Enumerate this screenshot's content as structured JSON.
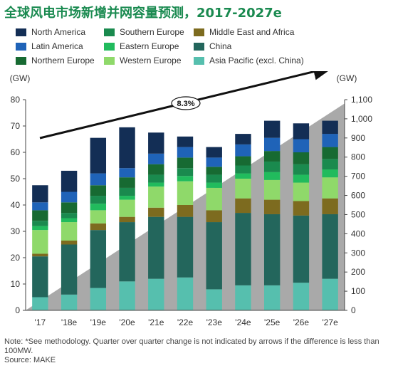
{
  "title": "全球风电市场新增并网容量预测，2017-2027e",
  "legend": [
    {
      "name": "North America",
      "color": "#132e55"
    },
    {
      "name": "Southern Europe",
      "color": "#1a8a4e"
    },
    {
      "name": "Middle East and Africa",
      "color": "#7d6b1f"
    },
    {
      "name": "Latin America",
      "color": "#1f63b8"
    },
    {
      "name": "Eastern Europe",
      "color": "#21bb5d"
    },
    {
      "name": "China",
      "color": "#23665c"
    },
    {
      "name": "Northern Europe",
      "color": "#176a32"
    },
    {
      "name": "Western Europe",
      "color": "#8fd96a"
    },
    {
      "name": "Asia Pacific (excl. China)",
      "color": "#56bfae"
    }
  ],
  "chart_data": {
    "type": "bar",
    "stacked": true,
    "categories": [
      "'17",
      "'18e",
      "'19e",
      "'20e",
      "'21e",
      "'22e",
      "'23e",
      "'24e",
      "'25e",
      "'26e",
      "'27e"
    ],
    "series": [
      {
        "name": "Asia Pacific (excl. China)",
        "values": [
          5,
          6,
          8.5,
          11,
          12,
          12.5,
          8,
          9.5,
          9.5,
          10.5,
          12
        ]
      },
      {
        "name": "China",
        "values": [
          15.5,
          19,
          22,
          22.5,
          23.5,
          23,
          25.5,
          27.5,
          27,
          25.5,
          24.5
        ]
      },
      {
        "name": "Middle East and Africa",
        "values": [
          1,
          1.5,
          2.5,
          2,
          3.5,
          4.5,
          4.5,
          5.5,
          5.5,
          5.5,
          6
        ]
      },
      {
        "name": "Western Europe",
        "values": [
          9,
          7,
          5,
          6.5,
          8,
          9,
          8.5,
          7.5,
          7.5,
          7,
          8
        ]
      },
      {
        "name": "Eastern Europe",
        "values": [
          1.5,
          1.5,
          2.5,
          1.5,
          1.5,
          2,
          2,
          2,
          3,
          3,
          3
        ]
      },
      {
        "name": "Southern Europe",
        "values": [
          2,
          2,
          3,
          3,
          3,
          3,
          3,
          3,
          4,
          4,
          4
        ]
      },
      {
        "name": "Northern Europe",
        "values": [
          4,
          4,
          4,
          4,
          4,
          4,
          3,
          3.5,
          4,
          4.5,
          4.5
        ]
      },
      {
        "name": "Latin America",
        "values": [
          3,
          4,
          4.5,
          3.5,
          4,
          4,
          3.5,
          4.5,
          5,
          5,
          5
        ]
      },
      {
        "name": "North America",
        "values": [
          6.5,
          8,
          13.5,
          15.5,
          8,
          4,
          4,
          4,
          6.5,
          6,
          5
        ]
      }
    ],
    "ylabel": "(GW)",
    "y2label": "(GW)",
    "ylim": [
      0,
      80
    ],
    "yticks": [
      0,
      10,
      20,
      30,
      40,
      50,
      60,
      70,
      80
    ],
    "y2lim": [
      0,
      1100
    ],
    "y2ticks": [
      "0",
      "100",
      "200",
      "300",
      "400",
      "500",
      "600",
      "700",
      "800",
      "900",
      "1,000",
      "1,100"
    ],
    "cumulative_area": {
      "start": 0,
      "end": 1080
    },
    "trend_annotation": "8.3%",
    "legend_position": "top"
  },
  "note": "Note: *See methodology. Quarter over quarter change is not indicated by arrows if the difference is less than 100MW.",
  "source": "Source: MAKE"
}
